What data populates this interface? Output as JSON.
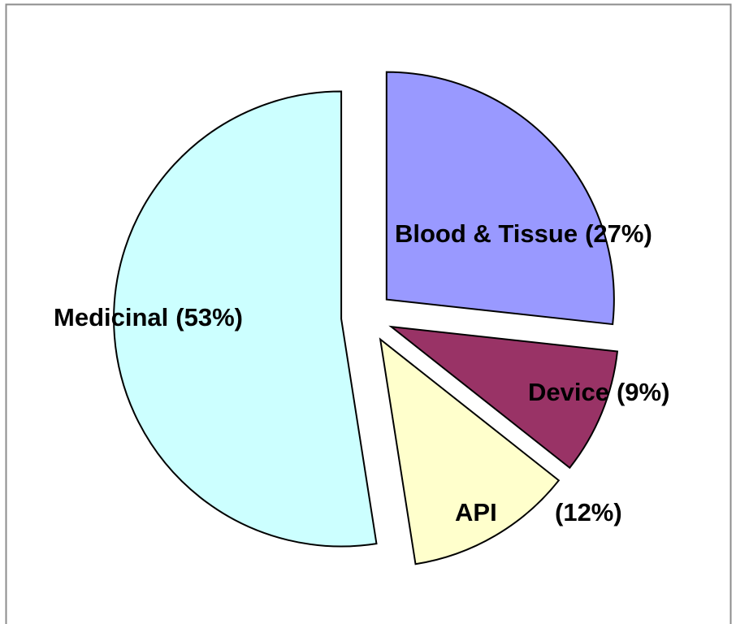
{
  "chart_data": {
    "type": "pie",
    "categories": [
      "Blood & Tissue",
      "Device",
      "API",
      "Medicinal"
    ],
    "values": [
      27,
      9,
      12,
      53
    ],
    "value_labels": [
      "(27%)",
      "(9%)",
      "(12%)",
      "(53%)"
    ],
    "colors": [
      "#9999ff",
      "#993366",
      "#ffffcc",
      "#ccffff"
    ]
  }
}
